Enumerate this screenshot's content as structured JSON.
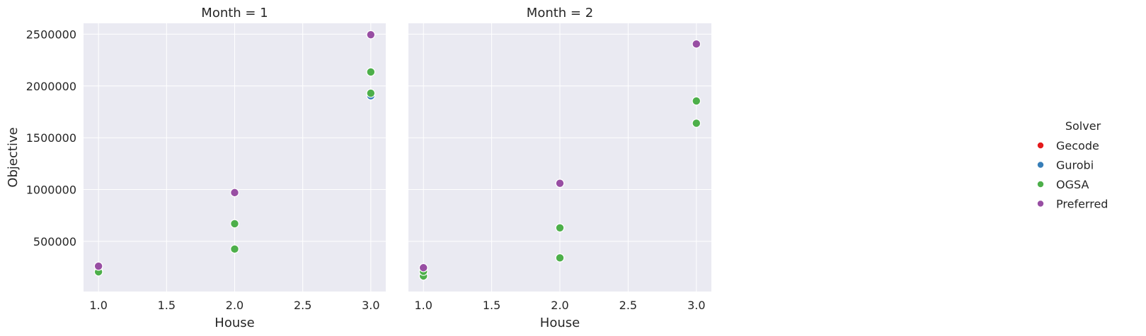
{
  "chart_data": {
    "type": "scatter",
    "facet_variable": "Month",
    "x_label": "House",
    "y_label": "Objective",
    "xlim": [
      0.89,
      3.11
    ],
    "ylim": [
      15000,
      2605000
    ],
    "x_ticks": [
      1.0,
      1.5,
      2.0,
      2.5,
      3.0
    ],
    "x_tick_labels": [
      "1.0",
      "1.5",
      "2.0",
      "2.5",
      "3.0"
    ],
    "y_ticks": [
      500000,
      1000000,
      1500000,
      2000000,
      2500000
    ],
    "y_tick_labels": [
      "500000",
      "1000000",
      "1500000",
      "2000000",
      "2500000"
    ],
    "grid": true,
    "legend": {
      "title": "Solver",
      "placement": "right",
      "entries": [
        {
          "name": "Gecode",
          "color": "#e41a1c"
        },
        {
          "name": "Gurobi",
          "color": "#377eb8"
        },
        {
          "name": "OGSA",
          "color": "#4daf4a"
        },
        {
          "name": "Preferred",
          "color": "#984ea3"
        }
      ]
    },
    "panels": [
      {
        "title": "Month = 1",
        "points": [
          {
            "solver": "Gurobi",
            "x": 1.0,
            "y": 210000
          },
          {
            "solver": "OGSA",
            "x": 1.0,
            "y": 205000
          },
          {
            "solver": "Preferred",
            "x": 1.0,
            "y": 260000
          },
          {
            "solver": "OGSA",
            "x": 2.0,
            "y": 425000
          },
          {
            "solver": "OGSA",
            "x": 2.0,
            "y": 670000
          },
          {
            "solver": "Preferred",
            "x": 2.0,
            "y": 970000
          },
          {
            "solver": "Gurobi",
            "x": 3.0,
            "y": 1905000
          },
          {
            "solver": "OGSA",
            "x": 3.0,
            "y": 1930000
          },
          {
            "solver": "OGSA",
            "x": 3.0,
            "y": 2135000
          },
          {
            "solver": "Preferred",
            "x": 3.0,
            "y": 2495000
          }
        ]
      },
      {
        "title": "Month = 2",
        "points": [
          {
            "solver": "Gurobi",
            "x": 1.0,
            "y": 215000
          },
          {
            "solver": "OGSA",
            "x": 1.0,
            "y": 165000
          },
          {
            "solver": "OGSA",
            "x": 1.0,
            "y": 210000
          },
          {
            "solver": "Preferred",
            "x": 1.0,
            "y": 245000
          },
          {
            "solver": "OGSA",
            "x": 2.0,
            "y": 340000
          },
          {
            "solver": "OGSA",
            "x": 2.0,
            "y": 630000
          },
          {
            "solver": "Preferred",
            "x": 2.0,
            "y": 1060000
          },
          {
            "solver": "OGSA",
            "x": 3.0,
            "y": 1640000
          },
          {
            "solver": "OGSA",
            "x": 3.0,
            "y": 1855000
          },
          {
            "solver": "Preferred",
            "x": 3.0,
            "y": 2405000
          }
        ]
      }
    ]
  }
}
